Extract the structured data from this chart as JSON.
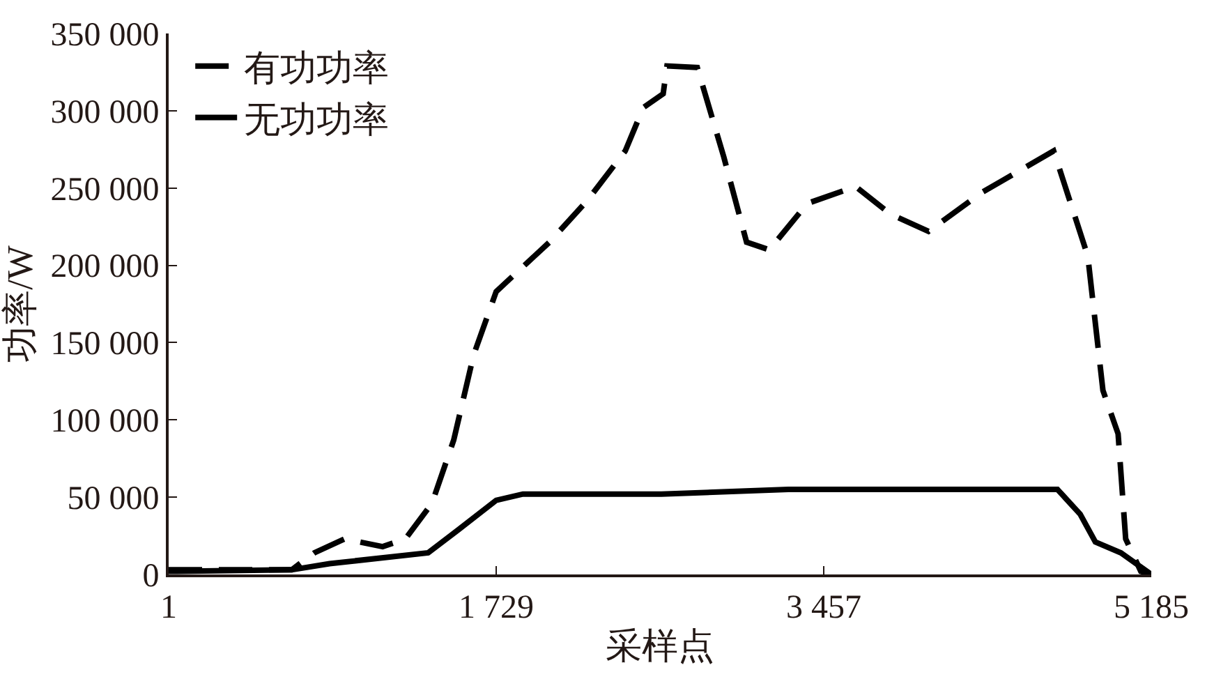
{
  "chart_data": {
    "type": "line",
    "xlabel": "采样点",
    "ylabel": "功率/W",
    "xlim": [
      1,
      5185
    ],
    "ylim": [
      0,
      350000
    ],
    "xticks": [
      1,
      {
        "value": 1729,
        "label": "1 729"
      },
      {
        "value": 3457,
        "label": "3 457"
      },
      {
        "value": 5185,
        "label": "5 185"
      }
    ],
    "yticks": [
      0,
      {
        "value": 50000,
        "label": "50 000"
      },
      {
        "value": 100000,
        "label": "100 000"
      },
      {
        "value": 150000,
        "label": "150 000"
      },
      {
        "value": 200000,
        "label": "200 000"
      },
      {
        "value": 250000,
        "label": "250 000"
      },
      {
        "value": 300000,
        "label": "300 000"
      },
      {
        "value": 350000,
        "label": "350 000"
      }
    ],
    "legend": "top left",
    "marker": "none",
    "series": [
      {
        "name": "有功功率",
        "color": "#000000",
        "line_style": "dashed",
        "x": [
          1,
          650,
          770,
          930,
          1130,
          1250,
          1390,
          1505,
          1610,
          1729,
          2010,
          2210,
          2410,
          2505,
          2610,
          2630,
          2790,
          2930,
          3050,
          3170,
          3370,
          3625,
          3810,
          4010,
          4290,
          4670,
          4850,
          4930,
          5010,
          5050,
          5130,
          5185
        ],
        "values": [
          3000,
          3000,
          14000,
          23000,
          18000,
          23000,
          46000,
          87000,
          142000,
          183000,
          215000,
          242000,
          274000,
          302000,
          311000,
          329000,
          328000,
          270000,
          215000,
          210000,
          240000,
          251000,
          233000,
          222000,
          247000,
          274000,
          206000,
          119000,
          91000,
          23000,
          2000,
          0
        ]
      },
      {
        "name": "无功功率",
        "color": "#000000",
        "line_style": "solid",
        "x": [
          1,
          650,
          850,
          1370,
          1530,
          1729,
          1870,
          2600,
          3270,
          4690,
          4810,
          4890,
          5025,
          5185
        ],
        "values": [
          2000,
          3000,
          7000,
          14000,
          29000,
          48000,
          52000,
          52000,
          55000,
          55000,
          39000,
          21000,
          14000,
          0
        ]
      }
    ]
  }
}
